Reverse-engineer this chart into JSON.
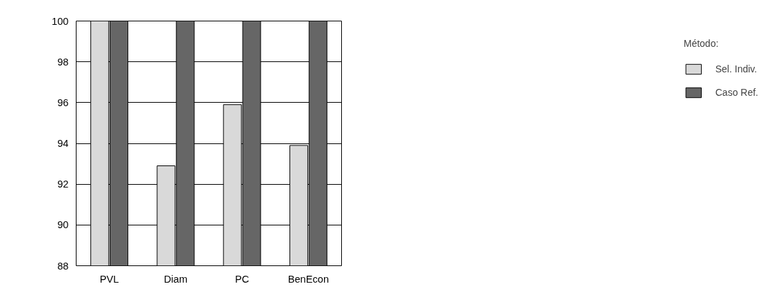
{
  "chart_data": {
    "type": "bar",
    "categories": [
      "PVL",
      "Diam",
      "PC",
      "BenEcon"
    ],
    "series": [
      {
        "name": "Sel. Indiv.",
        "color": "#d9d9d9",
        "values": [
          100,
          92.9,
          95.9,
          93.9
        ]
      },
      {
        "name": "Caso Ref.",
        "color": "#666666",
        "values": [
          100,
          100,
          100,
          100
        ]
      }
    ],
    "legend_title": "Método:",
    "legend": "right",
    "grid": "y",
    "ylim": [
      88,
      100
    ],
    "yticks": [
      88,
      90,
      92,
      94,
      96,
      98,
      100
    ]
  }
}
